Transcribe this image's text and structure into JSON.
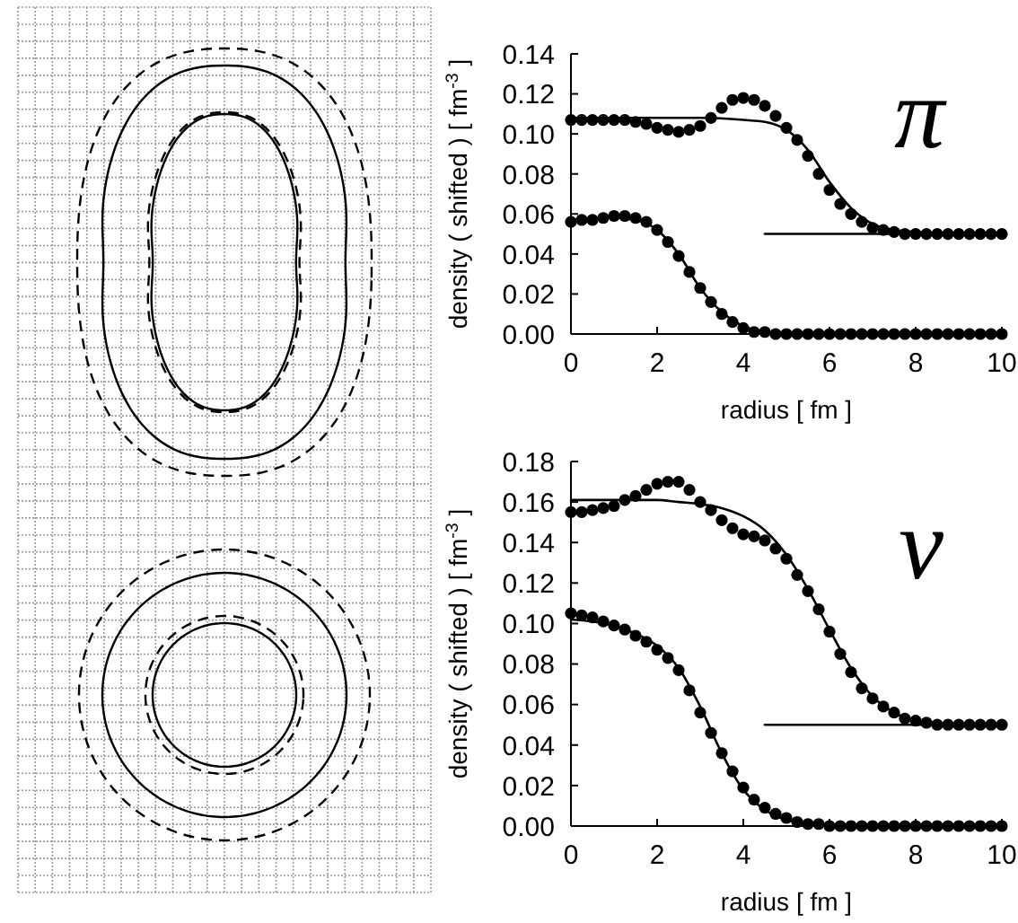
{
  "chart_data": [
    {
      "type": "scatter",
      "xlabel": "radius [ fm ]",
      "ylabel": "density ( shifted ) [ fm$^{-3}$ ]",
      "annotations": [
        "π"
      ],
      "xlim": [
        0,
        10
      ],
      "ylim": [
        0,
        0.14
      ],
      "xticks": [
        0,
        2,
        4,
        6,
        8,
        10
      ],
      "yticks": [
        {
          "value": 0,
          "label": "0.00"
        },
        {
          "value": 0.02,
          "label": "0.02"
        },
        {
          "value": 0.04,
          "label": "0.04"
        },
        {
          "value": 0.06,
          "label": "0.06"
        },
        {
          "value": 0.08,
          "label": "0.08"
        },
        {
          "value": 0.1,
          "label": "0.10"
        },
        {
          "value": 0.12,
          "label": "0.12"
        },
        {
          "value": 0.14,
          "label": "0.14"
        }
      ],
      "x": [
        0,
        0.25,
        0.5,
        0.75,
        1,
        1.25,
        1.5,
        1.75,
        2,
        2.25,
        2.5,
        2.75,
        3,
        3.25,
        3.5,
        3.75,
        4,
        4.25,
        4.5,
        4.75,
        5,
        5.25,
        5.5,
        5.75,
        6,
        6.25,
        6.5,
        6.75,
        7,
        7.25,
        7.5,
        7.75,
        8,
        8.25,
        8.5,
        8.75,
        9,
        9.25,
        9.5,
        9.75,
        10
      ],
      "series": [
        {
          "type": "line",
          "marker": "none",
          "color": "#000000",
          "x": [
            0,
            1,
            2,
            3,
            4,
            4.5,
            5,
            5.5,
            6,
            6.5,
            7,
            7.5,
            8,
            9,
            10
          ],
          "values": [
            0.108,
            0.108,
            0.108,
            0.108,
            0.107,
            0.106,
            0.102,
            0.092,
            0.076,
            0.063,
            0.055,
            0.052,
            0.051,
            0.05,
            0.05
          ]
        },
        {
          "type": "line",
          "marker": "none",
          "color": "#000000",
          "x": [
            0,
            0.5,
            1,
            1.5,
            2,
            2.5,
            3,
            3.5,
            4,
            4.5,
            5,
            6,
            10
          ],
          "values": [
            0.057,
            0.058,
            0.058,
            0.057,
            0.052,
            0.04,
            0.023,
            0.011,
            0.004,
            0.001,
            0,
            0,
            0
          ]
        },
        {
          "type": "line",
          "marker": "none",
          "color": "#000000",
          "x": [
            4.5,
            10
          ],
          "values": [
            0.05,
            0.05
          ]
        },
        {
          "marker": "circle",
          "color": "#000000",
          "values": [
            0.107,
            0.107,
            0.107,
            0.107,
            0.107,
            0.107,
            0.106,
            0.105,
            0.103,
            0.102,
            0.101,
            0.102,
            0.104,
            0.108,
            0.113,
            0.117,
            0.118,
            0.117,
            0.114,
            0.109,
            0.103,
            0.097,
            0.089,
            0.08,
            0.072,
            0.065,
            0.06,
            0.056,
            0.053,
            0.052,
            0.051,
            0.05,
            0.05,
            0.05,
            0.05,
            0.05,
            0.05,
            0.05,
            0.05,
            0.05,
            0.05
          ]
        },
        {
          "marker": "circle",
          "color": "#000000",
          "values": [
            0.056,
            0.057,
            0.057,
            0.058,
            0.059,
            0.059,
            0.058,
            0.056,
            0.052,
            0.046,
            0.039,
            0.031,
            0.023,
            0.016,
            0.01,
            0.006,
            0.003,
            0.001,
            0.001,
            0,
            0,
            0,
            0,
            0,
            0,
            0,
            0,
            0,
            0,
            0,
            0,
            0,
            0,
            0,
            0,
            0,
            0,
            0,
            0,
            0,
            0
          ]
        }
      ]
    },
    {
      "type": "scatter",
      "xlabel": "radius [ fm ]",
      "ylabel": "density ( shifted ) [ fm$^{-3}$ ]",
      "annotations": [
        "ν"
      ],
      "xlim": [
        0,
        10
      ],
      "ylim": [
        0,
        0.18
      ],
      "xticks": [
        0,
        2,
        4,
        6,
        8,
        10
      ],
      "yticks": [
        {
          "value": 0,
          "label": "0.00"
        },
        {
          "value": 0.02,
          "label": "0.02"
        },
        {
          "value": 0.04,
          "label": "0.04"
        },
        {
          "value": 0.06,
          "label": "0.06"
        },
        {
          "value": 0.08,
          "label": "0.08"
        },
        {
          "value": 0.1,
          "label": "0.10"
        },
        {
          "value": 0.12,
          "label": "0.12"
        },
        {
          "value": 0.14,
          "label": "0.14"
        },
        {
          "value": 0.16,
          "label": "0.16"
        },
        {
          "value": 0.18,
          "label": "0.18"
        }
      ],
      "x": [
        0,
        0.25,
        0.5,
        0.75,
        1,
        1.25,
        1.5,
        1.75,
        2,
        2.25,
        2.5,
        2.75,
        3,
        3.25,
        3.5,
        3.75,
        4,
        4.25,
        4.5,
        4.75,
        5,
        5.25,
        5.5,
        5.75,
        6,
        6.25,
        6.5,
        6.75,
        7,
        7.25,
        7.5,
        7.75,
        8,
        8.25,
        8.5,
        8.75,
        9,
        9.25,
        9.5,
        9.75,
        10
      ],
      "series": [
        {
          "type": "line",
          "marker": "none",
          "color": "#000000",
          "x": [
            0,
            1,
            2,
            2.5,
            3,
            3.5,
            4,
            4.5,
            5,
            5.5,
            6,
            6.5,
            7,
            7.5,
            8,
            8.5,
            9,
            10
          ],
          "values": [
            0.161,
            0.161,
            0.161,
            0.16,
            0.159,
            0.157,
            0.153,
            0.146,
            0.134,
            0.117,
            0.097,
            0.078,
            0.064,
            0.056,
            0.052,
            0.051,
            0.05,
            0.05
          ]
        },
        {
          "type": "line",
          "marker": "none",
          "color": "#000000",
          "x": [
            0,
            0.5,
            1,
            1.5,
            2,
            2.5,
            3,
            3.5,
            4,
            4.5,
            5,
            5.5,
            6,
            7,
            10
          ],
          "values": [
            0.102,
            0.101,
            0.099,
            0.095,
            0.089,
            0.078,
            0.059,
            0.036,
            0.018,
            0.008,
            0.003,
            0.001,
            0,
            0,
            0
          ]
        },
        {
          "type": "line",
          "marker": "none",
          "color": "#000000",
          "x": [
            4.5,
            10
          ],
          "values": [
            0.05,
            0.05
          ]
        },
        {
          "marker": "circle",
          "color": "#000000",
          "values": [
            0.155,
            0.155,
            0.156,
            0.157,
            0.158,
            0.161,
            0.163,
            0.166,
            0.169,
            0.17,
            0.17,
            0.166,
            0.16,
            0.156,
            0.151,
            0.147,
            0.144,
            0.143,
            0.141,
            0.137,
            0.132,
            0.124,
            0.116,
            0.107,
            0.096,
            0.085,
            0.076,
            0.068,
            0.063,
            0.059,
            0.056,
            0.053,
            0.052,
            0.051,
            0.05,
            0.05,
            0.05,
            0.05,
            0.05,
            0.05,
            0.05
          ]
        },
        {
          "marker": "circle",
          "color": "#000000",
          "values": [
            0.105,
            0.104,
            0.103,
            0.101,
            0.099,
            0.097,
            0.094,
            0.091,
            0.087,
            0.083,
            0.077,
            0.067,
            0.056,
            0.046,
            0.036,
            0.027,
            0.019,
            0.013,
            0.009,
            0.006,
            0.004,
            0.002,
            0.001,
            0.001,
            0,
            0,
            0,
            0,
            0,
            0,
            0,
            0,
            0,
            0,
            0,
            0,
            0,
            0,
            0,
            0,
            0
          ]
        }
      ]
    }
  ]
}
